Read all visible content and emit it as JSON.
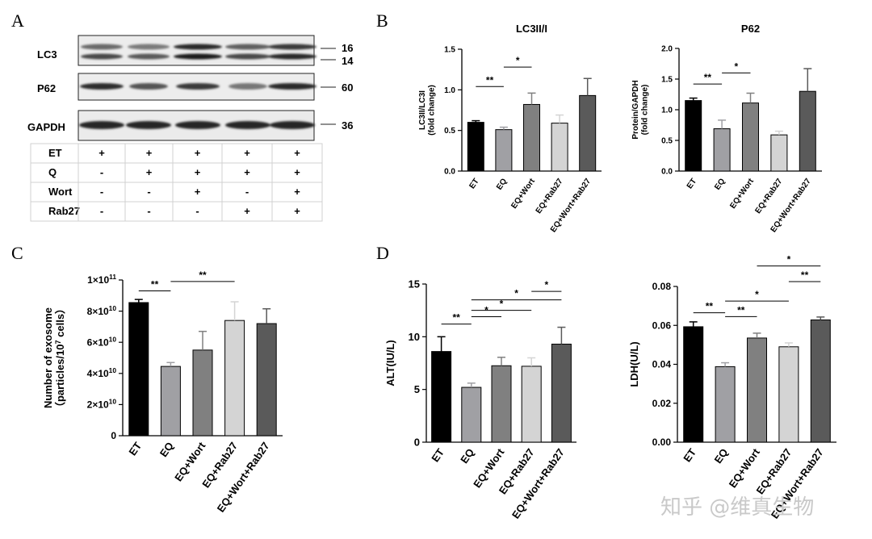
{
  "panel_labels": [
    "A",
    "B",
    "C",
    "D"
  ],
  "blot": {
    "rows": [
      {
        "label": "LC3",
        "markers": [
          "16",
          "14"
        ]
      },
      {
        "label": "P62",
        "markers": [
          "60"
        ]
      },
      {
        "label": "GAPDH",
        "markers": [
          "36"
        ]
      }
    ],
    "conditions": [
      {
        "label": "ET",
        "values": [
          "+",
          "+",
          "+",
          "+",
          "+"
        ]
      },
      {
        "label": "Q",
        "values": [
          "-",
          "+",
          "+",
          "+",
          "+"
        ]
      },
      {
        "label": "Wort",
        "values": [
          "-",
          "-",
          "+",
          "-",
          "+"
        ]
      },
      {
        "label": "Rab27",
        "values": [
          "-",
          "-",
          "-",
          "+",
          "+"
        ]
      }
    ]
  },
  "watermark": "知乎 @维真生物",
  "colors": {
    "ET": "#000000",
    "EQ": "#a0a0a4",
    "EQ+Wort": "#808080",
    "EQ+Rab27": "#d4d4d4",
    "EQ+Wort+Rab27": "#5a5a5a"
  },
  "chart_data": [
    {
      "id": "lc3",
      "type": "bar",
      "title": "LC3II/I",
      "ylabel": "LC3II/LC3I\n(fold change)",
      "ylim": [
        0,
        1.5
      ],
      "yticks": [
        "0.0",
        "0.5",
        "1.0",
        "1.5"
      ],
      "categories": [
        "ET",
        "EQ",
        "EQ+Wort",
        "EQ+Rab27",
        "EQ+Wort+Rab27"
      ],
      "values": [
        0.6,
        0.51,
        0.82,
        0.59,
        0.93
      ],
      "errors": [
        0.02,
        0.03,
        0.14,
        0.1,
        0.21
      ],
      "significance": [
        {
          "from": 0,
          "to": 1,
          "label": "**"
        },
        {
          "from": 1,
          "to": 2,
          "label": "*"
        }
      ]
    },
    {
      "id": "p62",
      "type": "bar",
      "title": "P62",
      "ylabel": "Protein/GAPDH\n(fold change)",
      "ylim": [
        0,
        2.0
      ],
      "yticks": [
        "0.0",
        "0.5",
        "1.0",
        "1.5",
        "2.0"
      ],
      "categories": [
        "ET",
        "EQ",
        "EQ+Wort",
        "EQ+Rab27",
        "EQ+Wort+Rab27"
      ],
      "values": [
        1.15,
        0.69,
        1.11,
        0.59,
        1.3
      ],
      "errors": [
        0.04,
        0.14,
        0.16,
        0.06,
        0.37
      ],
      "significance": [
        {
          "from": 0,
          "to": 1,
          "label": "**"
        },
        {
          "from": 1,
          "to": 2,
          "label": "*"
        }
      ]
    },
    {
      "id": "exosome",
      "type": "bar",
      "title": "",
      "ylabel": "Number of exosome\n（particles/10^7 cells）",
      "ylim": [
        0,
        100000000000.0
      ],
      "yticks": [
        "0",
        "2×10^10",
        "4×10^10",
        "6×10^10",
        "8×10^10",
        "1×10^11"
      ],
      "categories": [
        "ET",
        "EQ",
        "EQ+Wort",
        "EQ+Rab27",
        "EQ+Wort+Rab27"
      ],
      "values": [
        85500000000.0,
        44500000000.0,
        55000000000.0,
        74000000000.0,
        72000000000.0
      ],
      "errors": [
        2000000000.0,
        2500000000.0,
        12000000000.0,
        12000000000.0,
        9500000000.0
      ],
      "significance": [
        {
          "from": 0,
          "to": 1,
          "label": "**"
        },
        {
          "from": 1,
          "to": 3,
          "label": "**"
        }
      ]
    },
    {
      "id": "alt",
      "type": "bar",
      "title": "",
      "ylabel": "ALT(IU/L)",
      "ylim": [
        0,
        15
      ],
      "yticks": [
        "0",
        "5",
        "10",
        "15"
      ],
      "categories": [
        "ET",
        "EQ",
        "EQ+Wort",
        "EQ+Rab27",
        "EQ+Wort+Rab27"
      ],
      "values": [
        8.6,
        5.2,
        7.25,
        7.2,
        9.3
      ],
      "errors": [
        1.4,
        0.4,
        0.8,
        0.8,
        1.6
      ],
      "significance": [
        {
          "from": 0,
          "to": 1,
          "label": "**"
        },
        {
          "from": 1,
          "to": 2,
          "label": "*"
        },
        {
          "from": 1,
          "to": 3,
          "label": "*"
        },
        {
          "from": 1,
          "to": 4,
          "label": "*"
        },
        {
          "from": 3,
          "to": 4,
          "label": "*"
        }
      ]
    },
    {
      "id": "ldh",
      "type": "bar",
      "title": "",
      "ylabel": "LDH(U/L)",
      "ylim": [
        0,
        0.08
      ],
      "yticks": [
        "0.00",
        "0.02",
        "0.04",
        "0.06",
        "0.08"
      ],
      "categories": [
        "ET",
        "EQ",
        "EQ+Wort",
        "EQ+Rab27",
        "EQ+Wort+Rab27"
      ],
      "values": [
        0.0593,
        0.0388,
        0.0535,
        0.049,
        0.0628
      ],
      "errors": [
        0.0025,
        0.002,
        0.0025,
        0.002,
        0.0015
      ],
      "significance": [
        {
          "from": 0,
          "to": 1,
          "label": "**"
        },
        {
          "from": 1,
          "to": 2,
          "label": "**"
        },
        {
          "from": 1,
          "to": 3,
          "label": "*"
        },
        {
          "from": 3,
          "to": 4,
          "label": "**"
        },
        {
          "from": 2,
          "to": 4,
          "label": "*"
        }
      ]
    }
  ]
}
